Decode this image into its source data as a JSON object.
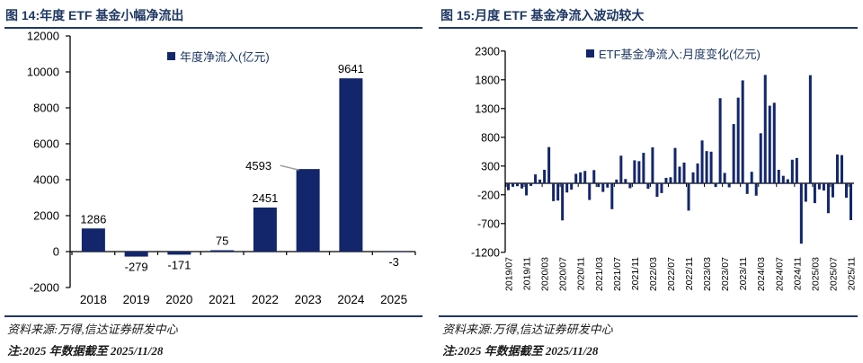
{
  "colors": {
    "bar": "#13266b",
    "title": "#1f3864",
    "rule": "#1f3864",
    "axis": "#000000",
    "label": "#000000",
    "leader": "#9a9a9a",
    "footer": "#1a1a1a"
  },
  "panels": [
    {
      "heading": "图 14:年度 ETF 基金小幅净流出",
      "legend": "年度净流入(亿元)",
      "source_note": "资料来源:万得,信达证券研发中心",
      "data_note": "注:2025 年数据截至 2025/11/28"
    },
    {
      "heading": "图 15:月度 ETF 基金净流入波动较大",
      "legend": "ETF基金净流入:月度变化(亿元)",
      "source_note": "资料来源:万得,信达证券研发中心",
      "data_note": "注:2025 年数据截至 2025/11/28"
    }
  ],
  "chart_data": [
    {
      "type": "bar",
      "title": "图 14:年度 ETF 基金小幅净流出",
      "legend": [
        "年度净流入(亿元)"
      ],
      "legend_position": "top",
      "grid": false,
      "categories": [
        "2018",
        "2019",
        "2020",
        "2021",
        "2022",
        "2023",
        "2024",
        "2025"
      ],
      "values": [
        1286,
        -279,
        -171,
        75,
        2451,
        4593,
        9641,
        -3
      ],
      "data_labels": [
        "1286",
        "-279",
        "-171",
        "75",
        "2451",
        "4593",
        "9641",
        "-3"
      ],
      "callout": {
        "index": 5,
        "label": "4593"
      },
      "ylim": [
        -2000,
        12000
      ],
      "yticks": [
        -2000,
        0,
        2000,
        4000,
        6000,
        8000,
        10000,
        12000
      ],
      "xlabel": "",
      "ylabel": ""
    },
    {
      "type": "bar",
      "title": "图 15:月度 ETF 基金净流入波动较大",
      "legend": [
        "ETF基金净流入:月度变化(亿元)"
      ],
      "legend_position": "top",
      "grid": false,
      "x": [
        "2019/07",
        "2019/08",
        "2019/09",
        "2019/10",
        "2019/11",
        "2019/12",
        "2020/01",
        "2020/02",
        "2020/03",
        "2020/04",
        "2020/05",
        "2020/06",
        "2020/07",
        "2020/08",
        "2020/09",
        "2020/10",
        "2020/11",
        "2020/12",
        "2021/01",
        "2021/02",
        "2021/03",
        "2021/04",
        "2021/05",
        "2021/06",
        "2021/07",
        "2021/08",
        "2021/09",
        "2021/10",
        "2021/11",
        "2021/12",
        "2022/01",
        "2022/02",
        "2022/03",
        "2022/04",
        "2022/05",
        "2022/06",
        "2022/07",
        "2022/08",
        "2022/09",
        "2022/10",
        "2022/11",
        "2022/12",
        "2023/01",
        "2023/02",
        "2023/03",
        "2023/04",
        "2023/05",
        "2023/06",
        "2023/07",
        "2023/08",
        "2023/09",
        "2023/10",
        "2023/11",
        "2023/12",
        "2024/01",
        "2024/02",
        "2024/03",
        "2024/04",
        "2024/05",
        "2024/06",
        "2024/07",
        "2024/08",
        "2024/09",
        "2024/10",
        "2024/11",
        "2024/12",
        "2025/01",
        "2025/02",
        "2025/03",
        "2025/04",
        "2025/05",
        "2025/06",
        "2025/07",
        "2025/08",
        "2025/09",
        "2025/10",
        "2025/11"
      ],
      "values": [
        -120,
        -60,
        -50,
        -90,
        -210,
        -45,
        155,
        65,
        235,
        630,
        -310,
        -300,
        -645,
        -160,
        -110,
        165,
        190,
        215,
        -290,
        230,
        -65,
        -150,
        -75,
        -450,
        65,
        480,
        75,
        -85,
        400,
        385,
        530,
        -95,
        625,
        -235,
        -170,
        95,
        105,
        615,
        290,
        360,
        -475,
        190,
        345,
        745,
        560,
        550,
        -65,
        1480,
        180,
        -70,
        1030,
        1490,
        1790,
        -185,
        200,
        -215,
        870,
        1885,
        1350,
        1400,
        235,
        130,
        70,
        410,
        440,
        -1050,
        -320,
        1880,
        -345,
        -105,
        -125,
        -520,
        -245,
        500,
        490,
        -250,
        -640
      ],
      "xtick_every": 4,
      "xticks_shown": [
        "2019/07",
        "2019/11",
        "2020/03",
        "2020/07",
        "2020/11",
        "2021/03",
        "2021/07",
        "2021/11",
        "2022/03",
        "2022/07",
        "2022/11",
        "2023/03",
        "2023/07",
        "2023/11",
        "2024/03",
        "2024/07",
        "2024/11",
        "2025/03",
        "2025/07",
        "2025/11"
      ],
      "ylim": [
        -1200,
        2300
      ],
      "yticks": [
        -1200,
        -700,
        -200,
        300,
        800,
        1300,
        1800,
        2300
      ],
      "xlabel": "",
      "ylabel": ""
    }
  ]
}
